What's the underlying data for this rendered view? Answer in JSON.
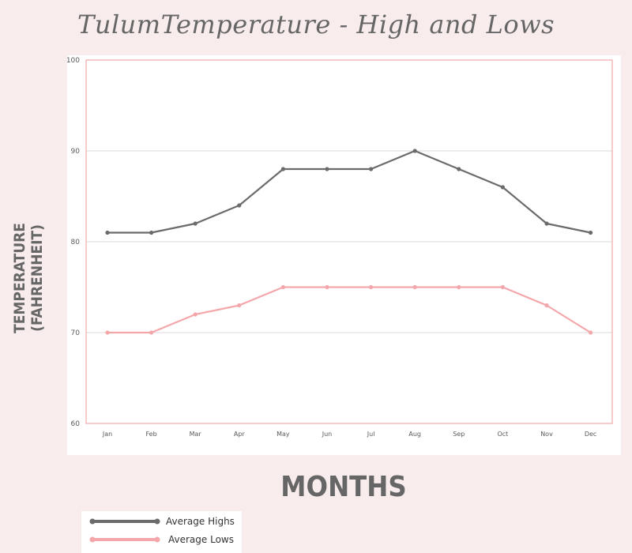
{
  "title": "TulumTemperature - High and Lows",
  "colors": {
    "background": "#f8ecec",
    "highs": "#6b6b6b",
    "lows": "#f4a7ab",
    "grid": "#d9d9d9",
    "frame": "#f4a7ab"
  },
  "chart_data": {
    "type": "line",
    "title": "TulumTemperature - High and Lows",
    "xlabel": "MONTHS",
    "ylabel": [
      "TEMPERATURE",
      "(FAHRENHEIT)"
    ],
    "categories": [
      "Jan",
      "Feb",
      "Mar",
      "Apr",
      "May",
      "Jun",
      "Jul",
      "Aug",
      "Sep",
      "Oct",
      "Nov",
      "Dec"
    ],
    "series": [
      {
        "name": "Average Highs",
        "values": [
          81,
          81,
          82,
          84,
          88,
          88,
          88,
          90,
          88,
          86,
          82,
          81
        ]
      },
      {
        "name": "Average Lows",
        "values": [
          70,
          70,
          72,
          73,
          75,
          75,
          75,
          75,
          75,
          75,
          73,
          70
        ]
      }
    ],
    "ylim": [
      60,
      100
    ],
    "yticks": [
      60,
      70,
      80,
      90,
      100
    ],
    "grid": true,
    "legend_position": "bottom-left"
  }
}
